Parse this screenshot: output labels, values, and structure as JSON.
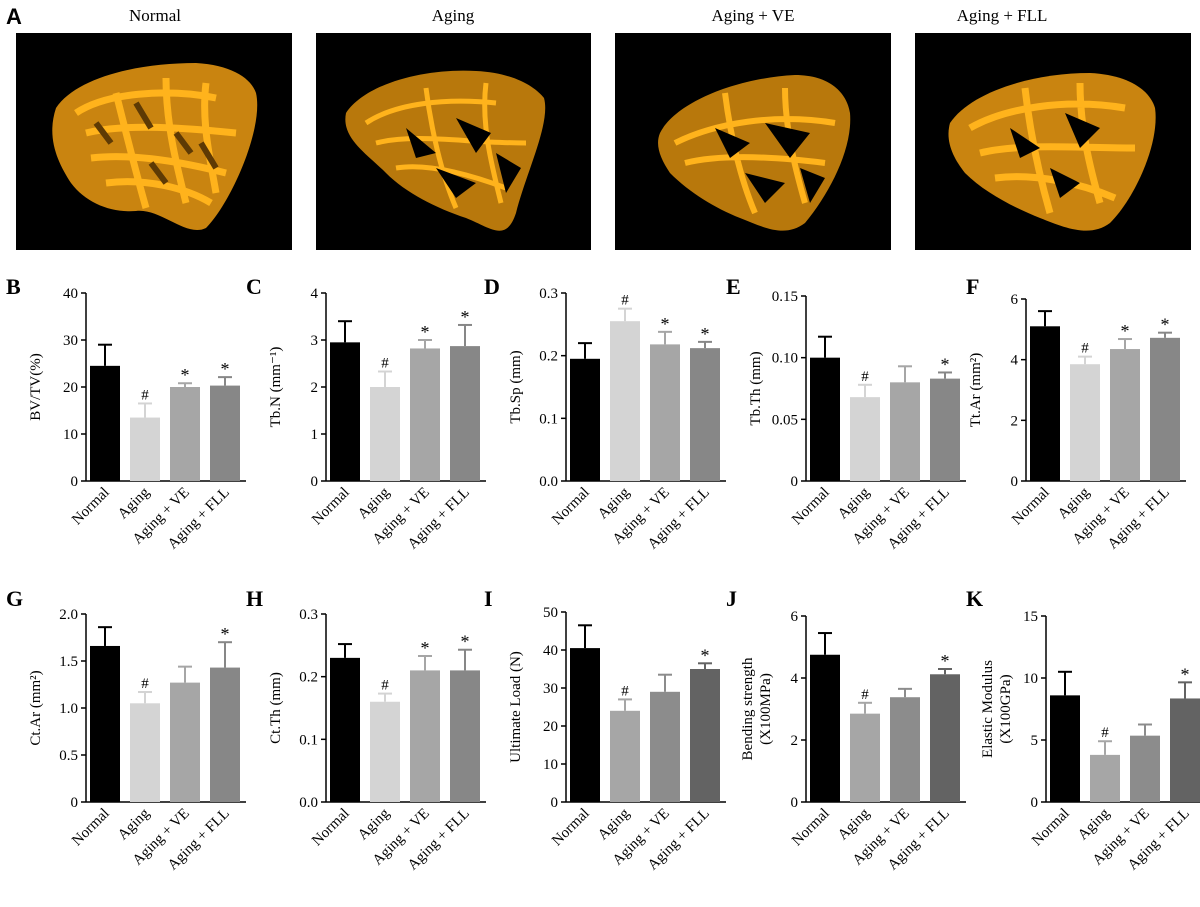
{
  "panel_a": {
    "letter": "A",
    "images": [
      {
        "label": "Normal"
      },
      {
        "label": "Aging"
      },
      {
        "label": "Aging + VE"
      },
      {
        "label": "Aging + FLL"
      }
    ],
    "colors": {
      "bone": "#e09a12",
      "bone_dark": "#8a5a06",
      "background": "#000000"
    }
  },
  "colors": {
    "normal": "#000000",
    "aging": "#d4d4d4",
    "ve": "#a6a6a6",
    "fll": "#878787",
    "aging_mech": "#a6a6a6",
    "ve_mech": "#8c8c8c",
    "fll_mech": "#636363"
  },
  "chart_data": [
    {
      "letter": "B",
      "type": "bar",
      "categories": [
        "Normal",
        "Aging",
        "Aging + VE",
        "Aging + FLL"
      ],
      "values": [
        24.5,
        13.5,
        20,
        20.3
      ],
      "errors": [
        4.5,
        3,
        0.8,
        1.8
      ],
      "marks": [
        "",
        "#",
        "*",
        "*"
      ],
      "ylabel": "BV/TV(%)",
      "ylim": [
        0,
        40
      ],
      "yticks": [
        "0",
        "10",
        "20",
        "30",
        "40"
      ]
    },
    {
      "letter": "C",
      "type": "bar",
      "categories": [
        "Normal",
        "Aging",
        "Aging + VE",
        "Aging + FLL"
      ],
      "values": [
        2.95,
        2.0,
        2.82,
        2.87
      ],
      "errors": [
        0.45,
        0.33,
        0.18,
        0.45
      ],
      "marks": [
        "",
        "#",
        "*",
        "*"
      ],
      "ylabel": "Tb.N (mm⁻¹)",
      "ylim": [
        0,
        4
      ],
      "yticks": [
        "0",
        "1",
        "2",
        "3",
        "4"
      ]
    },
    {
      "letter": "D",
      "type": "bar",
      "categories": [
        "Normal",
        "Aging",
        "Aging + VE",
        "Aging + FLL"
      ],
      "values": [
        0.195,
        0.255,
        0.218,
        0.212
      ],
      "errors": [
        0.025,
        0.02,
        0.02,
        0.01
      ],
      "marks": [
        "",
        "#",
        "*",
        "*"
      ],
      "ylabel": "Tb.Sp (mm)",
      "ylim": [
        0,
        0.3
      ],
      "yticks": [
        "0.0",
        "0.1",
        "0.2",
        "0.3"
      ]
    },
    {
      "letter": "E",
      "type": "bar",
      "categories": [
        "Normal",
        "Aging",
        "Aging + VE",
        "Aging + FLL"
      ],
      "values": [
        0.1,
        0.068,
        0.08,
        0.083
      ],
      "errors": [
        0.017,
        0.01,
        0.013,
        0.005
      ],
      "marks": [
        "",
        "#",
        "",
        "*"
      ],
      "ylabel": "Tb.Th (mm)",
      "ylim": [
        0,
        0.15
      ],
      "yticks": [
        "0",
        "0.05",
        "0.10",
        "0.15"
      ]
    },
    {
      "letter": "F",
      "type": "bar",
      "categories": [
        "Normal",
        "Aging",
        "Aging + VE",
        "Aging + FLL"
      ],
      "values": [
        5.1,
        3.85,
        4.35,
        4.72
      ],
      "errors": [
        0.5,
        0.25,
        0.33,
        0.17
      ],
      "marks": [
        "",
        "#",
        "*",
        "*"
      ],
      "ylabel": "Tt.Ar (mm²)",
      "ylim": [
        0,
        6
      ],
      "yticks": [
        "0",
        "2",
        "4",
        "6"
      ]
    },
    {
      "letter": "G",
      "type": "bar",
      "categories": [
        "Normal",
        "Aging",
        "Aging + VE",
        "Aging + FLL"
      ],
      "values": [
        1.66,
        1.05,
        1.27,
        1.43
      ],
      "errors": [
        0.2,
        0.12,
        0.17,
        0.27
      ],
      "marks": [
        "",
        "#",
        "",
        "*"
      ],
      "ylabel": "Ct.Ar (mm²)",
      "ylim": [
        0,
        2.0
      ],
      "yticks": [
        "0",
        "0.5",
        "1.0",
        "1.5",
        "2.0"
      ]
    },
    {
      "letter": "H",
      "type": "bar",
      "categories": [
        "Normal",
        "Aging",
        "Aging + VE",
        "Aging + FLL"
      ],
      "values": [
        0.23,
        0.16,
        0.21,
        0.21
      ],
      "errors": [
        0.022,
        0.013,
        0.023,
        0.033
      ],
      "marks": [
        "",
        "#",
        "*",
        "*"
      ],
      "ylabel": "Ct.Th (mm)",
      "ylim": [
        0,
        0.3
      ],
      "yticks": [
        "0.0",
        "0.1",
        "0.2",
        "0.3"
      ]
    },
    {
      "letter": "I",
      "type": "bar",
      "categories": [
        "Normal",
        "Aging",
        "Aging + VE",
        "Aging + FLL"
      ],
      "values": [
        40.5,
        24,
        29,
        35
      ],
      "errors": [
        6,
        3,
        4.5,
        1.5
      ],
      "marks": [
        "",
        "#",
        "",
        "*"
      ],
      "ylabel": "Ultimate Load (N)",
      "ylim": [
        0,
        50
      ],
      "yticks": [
        "0",
        "10",
        "20",
        "30",
        "40",
        "50"
      ],
      "mech": true
    },
    {
      "letter": "J",
      "type": "bar",
      "categories": [
        "Normal",
        "Aging",
        "Aging + VE",
        "Aging + FLL"
      ],
      "values": [
        4.75,
        2.85,
        3.38,
        4.12
      ],
      "errors": [
        0.7,
        0.35,
        0.27,
        0.17
      ],
      "marks": [
        "",
        "#",
        "",
        "*"
      ],
      "ylabel": "Bending strength",
      "ylabel2": "(X100MPa)",
      "ylim": [
        0,
        6
      ],
      "yticks": [
        "0",
        "2",
        "4",
        "6"
      ],
      "mech": true
    },
    {
      "letter": "K",
      "type": "bar",
      "categories": [
        "Normal",
        "Aging",
        "Aging + VE",
        "Aging + FLL"
      ],
      "values": [
        8.6,
        3.8,
        5.35,
        8.35
      ],
      "errors": [
        1.9,
        1.1,
        0.9,
        1.3
      ],
      "marks": [
        "",
        "#",
        "",
        "*"
      ],
      "ylabel": "Elastic Modulus",
      "ylabel2": "(X100GPa)",
      "ylim": [
        0,
        15
      ],
      "yticks": [
        "0",
        "5",
        "10",
        "15"
      ],
      "mech": true
    }
  ]
}
